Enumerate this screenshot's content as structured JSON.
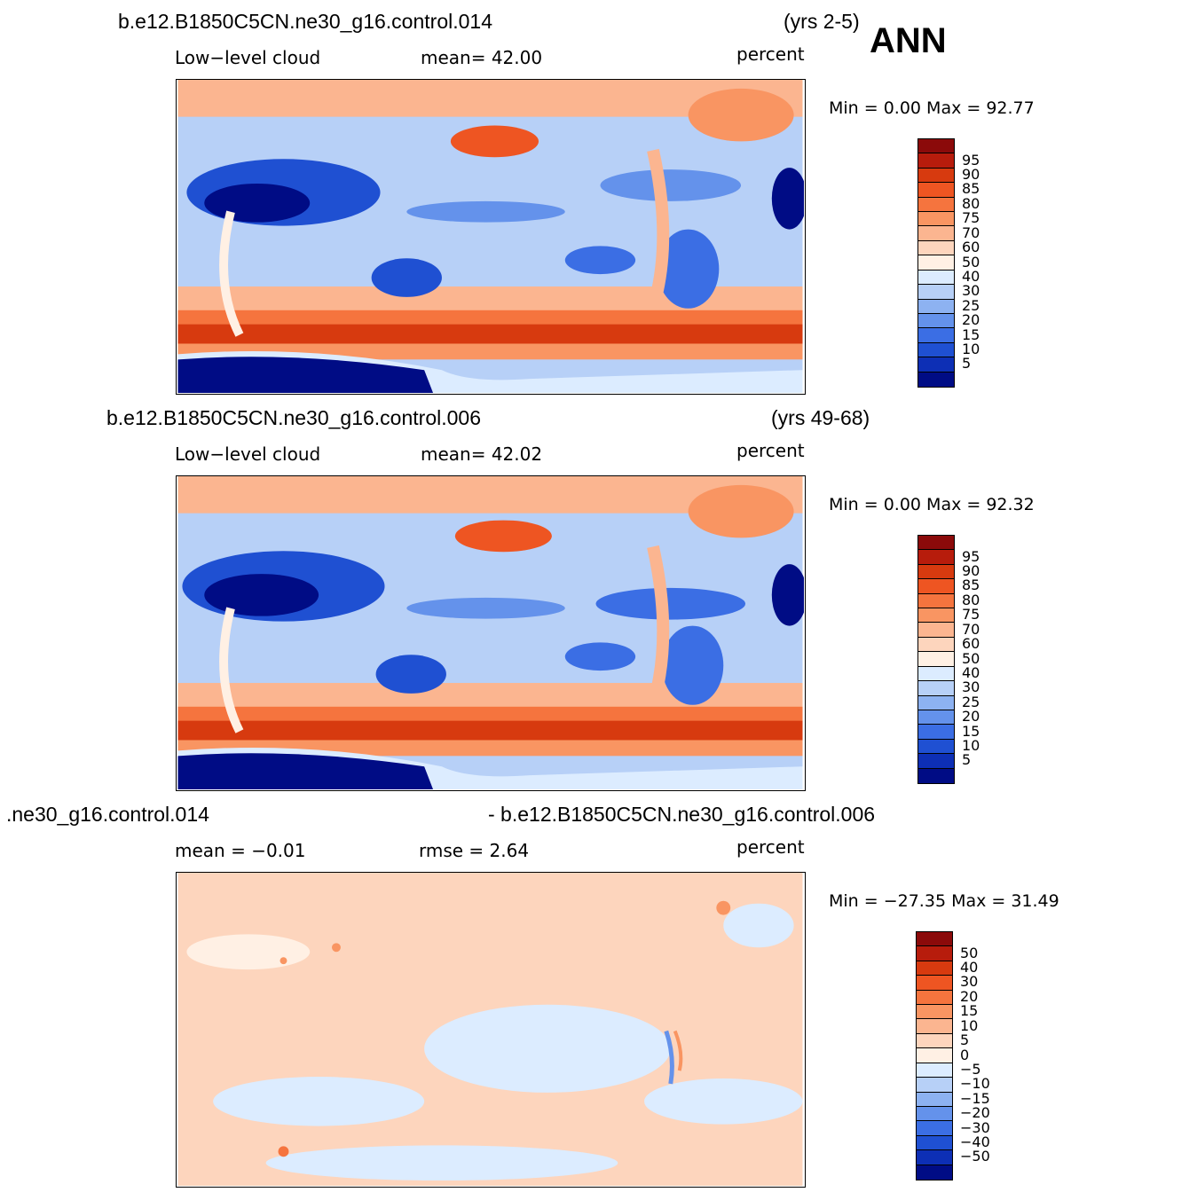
{
  "season": "ANN",
  "panels": [
    {
      "case": "b.e12.B1850C5CN.ne30_g16.control.014",
      "years": "(yrs 2-5)",
      "left_label": "Low−level cloud",
      "center_label": "mean=   42.00",
      "units": "percent",
      "minmax": "Min =     0.00  Max =    92.77",
      "kind": "abs"
    },
    {
      "case": "b.e12.B1850C5CN.ne30_g16.control.006",
      "years": "(yrs 49-68)",
      "left_label": "Low−level cloud",
      "center_label": "mean=   42.02",
      "units": "percent",
      "minmax": "Min =     0.00  Max =    92.32",
      "kind": "abs"
    },
    {
      "case": ".ne30_g16.control.014",
      "years": "- b.e12.B1850C5CN.ne30_g16.control.006",
      "left_label": "mean  =   −0.01",
      "center_label": "rmse  =     2.64",
      "units": "percent",
      "minmax": "Min =  −27.35  Max =    31.49",
      "kind": "diff"
    }
  ],
  "colorbar_abs": {
    "labels": [
      "95",
      "90",
      "85",
      "80",
      "75",
      "70",
      "60",
      "50",
      "40",
      "30",
      "25",
      "20",
      "15",
      "10",
      "5"
    ],
    "colors": [
      "#8b0a0a",
      "#b71c0c",
      "#d73a0f",
      "#ee5522",
      "#f5743e",
      "#f99562",
      "#fbb590",
      "#fdd5bd",
      "#fff0e4",
      "#dcecff",
      "#b7d0f7",
      "#8db2f1",
      "#6492eb",
      "#3b6ee4",
      "#1f50d2",
      "#0d2fb5",
      "#000c85"
    ]
  },
  "colorbar_diff": {
    "labels": [
      "50",
      "40",
      "30",
      "20",
      "15",
      "10",
      "5",
      "0",
      "−5",
      "−10",
      "−15",
      "−20",
      "−30",
      "−40",
      "−50"
    ],
    "colors": [
      "#8b0a0a",
      "#b71c0c",
      "#d73a0f",
      "#ee5522",
      "#f5743e",
      "#f99562",
      "#fbb590",
      "#fdd5bd",
      "#fff0e4",
      "#dcecff",
      "#b7d0f7",
      "#8db2f1",
      "#6492eb",
      "#3b6ee4",
      "#1f50d2",
      "#0d2fb5",
      "#000c85"
    ]
  }
}
